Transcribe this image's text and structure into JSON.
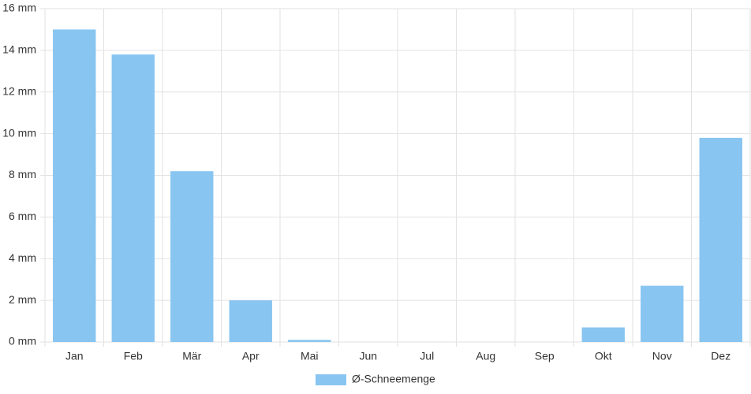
{
  "chart_data": {
    "type": "bar",
    "categories": [
      "Jan",
      "Feb",
      "Mär",
      "Apr",
      "Mai",
      "Jun",
      "Jul",
      "Aug",
      "Sep",
      "Okt",
      "Nov",
      "Dez"
    ],
    "series": [
      {
        "name": "Ø-Schneemenge",
        "color": "#88c5f1",
        "values": [
          15.0,
          13.8,
          8.2,
          2.0,
          0.1,
          0,
          0,
          0,
          0,
          0.7,
          2.7,
          9.8
        ]
      }
    ],
    "ylim": [
      0,
      16
    ],
    "yticks": [
      {
        "value": 0,
        "label": "0 mm"
      },
      {
        "value": 2,
        "label": "2 mm"
      },
      {
        "value": 4,
        "label": "4 mm"
      },
      {
        "value": 6,
        "label": "6 mm"
      },
      {
        "value": 8,
        "label": "8 mm"
      },
      {
        "value": 10,
        "label": "10 mm"
      },
      {
        "value": 12,
        "label": "12 mm"
      },
      {
        "value": 14,
        "label": "14 mm"
      },
      {
        "value": 16,
        "label": "16 mm"
      }
    ],
    "grid": true,
    "legend": "bottom"
  }
}
